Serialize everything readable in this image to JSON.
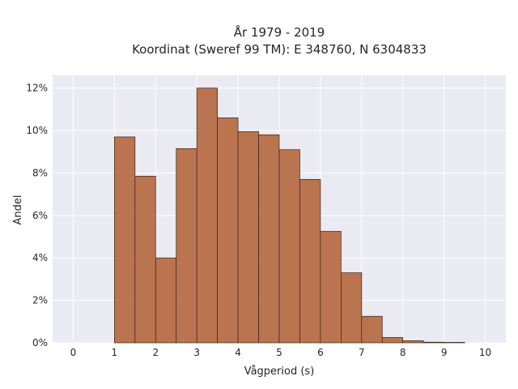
{
  "chart_data": {
    "type": "bar",
    "title_line1": "År 1979 - 2019",
    "title_line2": "Koordinat (Sweref 99 TM): E 348760, N 6304833",
    "xlabel": "Vågperiod (s)",
    "ylabel": "Andel",
    "xlim": [
      -0.5,
      10.5
    ],
    "ylim": [
      0,
      12.6
    ],
    "x_ticks": [
      0,
      1,
      2,
      3,
      4,
      5,
      6,
      7,
      8,
      9,
      10
    ],
    "x_tick_labels": [
      "0",
      "1",
      "2",
      "3",
      "4",
      "5",
      "6",
      "7",
      "8",
      "9",
      "10"
    ],
    "y_ticks": [
      0,
      2,
      4,
      6,
      8,
      10,
      12
    ],
    "y_tick_labels": [
      "0%",
      "2%",
      "4%",
      "6%",
      "8%",
      "10%",
      "12%"
    ],
    "bin_width": 0.5,
    "bin_starts": [
      1.0,
      1.5,
      2.0,
      2.5,
      3.0,
      3.5,
      4.0,
      4.5,
      5.0,
      5.5,
      6.0,
      6.5,
      7.0,
      7.5,
      8.0,
      8.5,
      9.0
    ],
    "values": [
      9.7,
      7.85,
      4.0,
      9.15,
      12.0,
      10.6,
      9.95,
      9.8,
      9.1,
      7.7,
      5.25,
      3.3,
      1.25,
      0.25,
      0.1,
      0.03,
      0.02
    ],
    "grid": true,
    "colors": {
      "bar_fill": "#b5673e",
      "bar_edge": "#3a2418",
      "plot_bg": "#eaeaf2",
      "grid": "#ffffff"
    }
  }
}
